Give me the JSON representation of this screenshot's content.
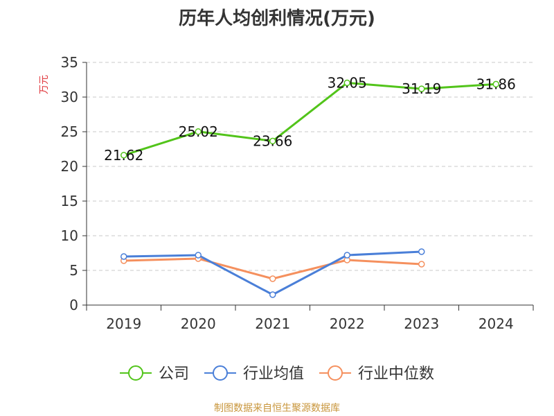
{
  "chart_data": {
    "type": "line",
    "title": "历年人均创利情况(万元)",
    "ylabel": "万元",
    "xlabel": "",
    "categories": [
      "2019",
      "2020",
      "2021",
      "2022",
      "2023",
      "2024"
    ],
    "ylim": [
      0,
      35
    ],
    "yticks": [
      0,
      5,
      10,
      15,
      20,
      25,
      30,
      35
    ],
    "grid": "horizontal-dashed",
    "legend_position": "bottom",
    "series": [
      {
        "name": "公司",
        "color": "#52c41a",
        "values": [
          21.62,
          25.02,
          23.66,
          32.05,
          31.19,
          31.86
        ],
        "labels": [
          "21.62",
          "25.02",
          "23.66",
          "32.05",
          "31.19",
          "31.86"
        ]
      },
      {
        "name": "行业均值",
        "color": "#4a7fd8",
        "values": [
          7.0,
          7.2,
          1.5,
          7.2,
          7.7,
          null
        ]
      },
      {
        "name": "行业中位数",
        "color": "#f5905e",
        "values": [
          6.4,
          6.7,
          3.8,
          6.5,
          5.9,
          null
        ]
      }
    ]
  },
  "source": "制图数据来自恒生聚源数据库"
}
